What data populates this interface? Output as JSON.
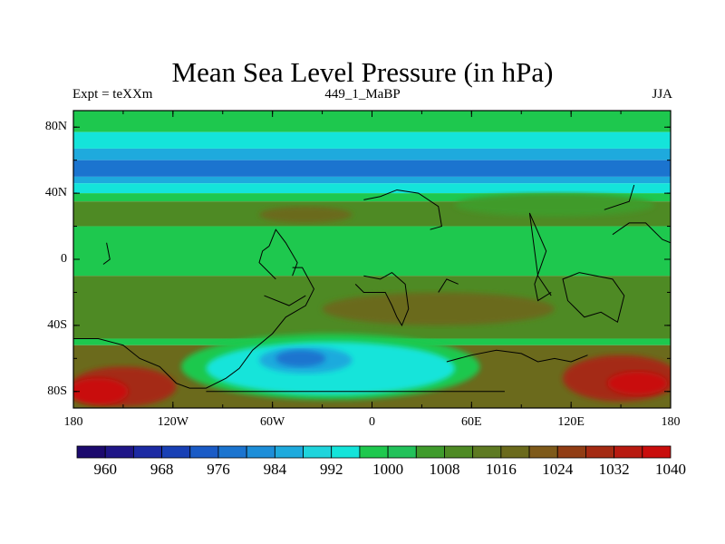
{
  "title": "Mean Sea Level Pressure (in hPa)",
  "left_string": "Expt = teXXm",
  "center_string": "449_1_MaBP",
  "right_string": "JJA",
  "map": {
    "lon_range": [
      -180,
      180
    ],
    "lat_range": [
      -90,
      90
    ],
    "x_ticks": [
      {
        "lon": -180,
        "label": "180"
      },
      {
        "lon": -120,
        "label": "120W"
      },
      {
        "lon": -60,
        "label": "60W"
      },
      {
        "lon": 0,
        "label": "0"
      },
      {
        "lon": 60,
        "label": "60E"
      },
      {
        "lon": 120,
        "label": "120E"
      },
      {
        "lon": 180,
        "label": "180"
      }
    ],
    "y_ticks": [
      {
        "lat": 80,
        "label": "80N"
      },
      {
        "lat": 40,
        "label": "40N"
      },
      {
        "lat": 0,
        "label": "0"
      },
      {
        "lat": -40,
        "label": "40S"
      },
      {
        "lat": -80,
        "label": "80S"
      }
    ]
  },
  "colorbar": {
    "colors": [
      "#1c0a6e",
      "#1f1687",
      "#1c2aa3",
      "#1840b5",
      "#1a5bc6",
      "#1b74cf",
      "#1d8ed8",
      "#1eaadd",
      "#1fd4dc",
      "#14e4da",
      "#1ec84e",
      "#22c25a",
      "#3f9b2c",
      "#4e8a24",
      "#5e7a22",
      "#6b6a1c",
      "#7e5a1a",
      "#913d14",
      "#a42a12",
      "#b81a10",
      "#c90d0c"
    ],
    "labels": [
      "960",
      "968",
      "976",
      "984",
      "992",
      "1000",
      "1008",
      "1016",
      "1024",
      "1032",
      "1040"
    ]
  },
  "fields": {
    "bands": [
      {
        "lat_top": 90,
        "lat_bottom": 77,
        "color": "#1ec84e"
      },
      {
        "lat_top": 77,
        "lat_bottom": 67,
        "color": "#14e4da"
      },
      {
        "lat_top": 67,
        "lat_bottom": 60,
        "color": "#1eaadd"
      },
      {
        "lat_top": 60,
        "lat_bottom": 50,
        "color": "#1b74cf"
      },
      {
        "lat_top": 50,
        "lat_bottom": 46,
        "color": "#1eaadd"
      },
      {
        "lat_top": 46,
        "lat_bottom": 40,
        "color": "#14e4da"
      },
      {
        "lat_top": 40,
        "lat_bottom": 35,
        "color": "#1ec84e"
      },
      {
        "lat_top": 35,
        "lat_bottom": 20,
        "color": "#4e8a24"
      },
      {
        "lat_top": 20,
        "lat_bottom": -10,
        "color": "#1ec84e"
      },
      {
        "lat_top": -10,
        "lat_bottom": -48,
        "color": "#4e8a24"
      },
      {
        "lat_top": -48,
        "lat_bottom": -52,
        "color": "#1ec84e"
      },
      {
        "lat_top": -52,
        "lat_bottom": -90,
        "color": "#6b6a1c"
      }
    ],
    "blobs": [
      {
        "lon": -40,
        "lat": 27,
        "rlon": 28,
        "rlat": 5,
        "color": "#6b6a1c"
      },
      {
        "lon": 110,
        "lat": 33,
        "rlon": 60,
        "rlat": 7,
        "color": "#3f9b2c"
      },
      {
        "lon": 40,
        "lat": -30,
        "rlon": 70,
        "rlat": 10,
        "color": "#6b6a1c"
      },
      {
        "lon": -150,
        "lat": -77,
        "rlon": 32,
        "rlat": 12,
        "color": "#a42a12"
      },
      {
        "lon": -165,
        "lat": -80,
        "rlon": 18,
        "rlat": 8,
        "color": "#c90d0c"
      },
      {
        "lon": 150,
        "lat": -72,
        "rlon": 35,
        "rlat": 14,
        "color": "#a42a12"
      },
      {
        "lon": 160,
        "lat": -75,
        "rlon": 18,
        "rlat": 7,
        "color": "#c90d0c"
      },
      {
        "lon": -25,
        "lat": -65,
        "rlon": 90,
        "rlat": 20,
        "color": "#1ec84e"
      },
      {
        "lon": -25,
        "lat": -66,
        "rlon": 75,
        "rlat": 16,
        "color": "#14e4da"
      },
      {
        "lon": -40,
        "lat": -61,
        "rlon": 28,
        "rlat": 8,
        "color": "#1eaadd"
      },
      {
        "lon": -43,
        "lat": -60,
        "rlon": 15,
        "rlat": 5,
        "color": "#1b74cf"
      }
    ]
  }
}
